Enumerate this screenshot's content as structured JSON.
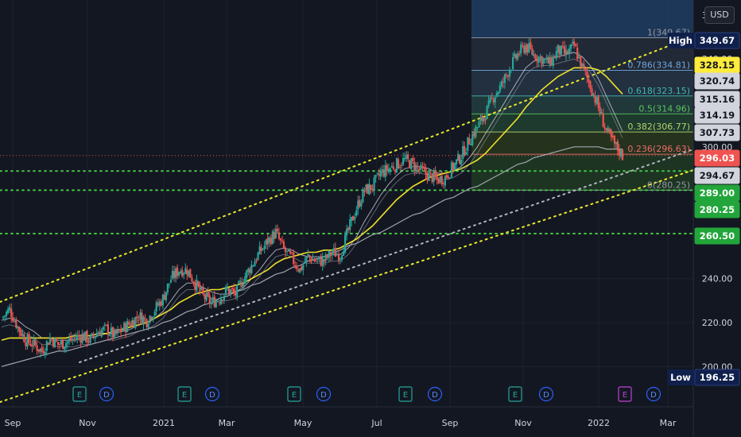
{
  "currency": "USD",
  "colors": {
    "background": "#131722",
    "grid": "#1e222d",
    "candle_up": "#26a69a",
    "candle_down": "#ef5350",
    "ma_yellow": "#f0e02a",
    "ma_gray": "#b2b5be",
    "channel": "#e8e82a",
    "support": "#43c443",
    "fib_high_band": "#2a4a6e",
    "fib_low_band": "#5a1f26"
  },
  "chart_data": {
    "type": "candlestick",
    "x_ticks": [
      "Sep",
      "Nov",
      "2021",
      "Mar",
      "May",
      "Jul",
      "Sep",
      "Nov",
      "2022",
      "Mar"
    ],
    "y_ticks": [
      "240.00",
      "220.00",
      "200.00"
    ],
    "y_range": [
      194,
      358
    ],
    "support_levels": [
      289.0,
      280.25,
      260.5
    ],
    "fibonacci": {
      "levels": [
        {
          "ratio": "1",
          "price": 349.67,
          "label": "1(349.67)"
        },
        {
          "ratio": "0.786",
          "price": 334.81,
          "label": "0.786(334.81)"
        },
        {
          "ratio": "0.618",
          "price": 323.15,
          "label": "0.618(323.15)"
        },
        {
          "ratio": "0.5",
          "price": 314.96,
          "label": "0.5(314.96)"
        },
        {
          "ratio": "0.382",
          "price": 306.77,
          "label": "0.382(306.77)"
        },
        {
          "ratio": "0.236",
          "price": 296.63,
          "label": "0.236(296.63)"
        },
        {
          "ratio": "0",
          "price": 280.25,
          "label": "0(280.25)"
        }
      ]
    },
    "price_tags": [
      {
        "label": "High",
        "value": "349.67",
        "price": 349.67,
        "style": "navy"
      },
      {
        "value": "328.15",
        "price": 328.15,
        "style": "yellow"
      },
      {
        "value": "320.74",
        "price": 320.74,
        "style": "light"
      },
      {
        "value": "315.16",
        "price": 315.16,
        "style": "light"
      },
      {
        "value": "314.19",
        "price": 314.19,
        "style": "light"
      },
      {
        "value": "307.73",
        "price": 307.73,
        "style": "light"
      },
      {
        "value": "296.03",
        "price": 296.03,
        "style": "red"
      },
      {
        "value": "294.67",
        "price": 294.67,
        "style": "light"
      },
      {
        "value": "289.00",
        "price": 289.0,
        "style": "green"
      },
      {
        "value": "280.25",
        "price": 280.25,
        "style": "green"
      },
      {
        "value": "260.50",
        "price": 260.5,
        "style": "green"
      },
      {
        "label": "Low",
        "value": "196.25",
        "price": 196.25,
        "style": "navy"
      }
    ],
    "events": [
      "E",
      "D",
      "E",
      "D",
      "E",
      "D",
      "E",
      "D",
      "E",
      "D",
      "E",
      "D"
    ],
    "series": [
      {
        "name": "close",
        "values": [
          222,
          226,
          218,
          212,
          210,
          207,
          213,
          210,
          211,
          213,
          214,
          212,
          216,
          217,
          214,
          217,
          220,
          223,
          221,
          226,
          231,
          240,
          244,
          244,
          238,
          232,
          229,
          231,
          235,
          233,
          240,
          246,
          252,
          257,
          261,
          253,
          249,
          244,
          250,
          248,
          248,
          252,
          251,
          262,
          272,
          280,
          282,
          288,
          290,
          292,
          294,
          292,
          289,
          287,
          285,
          286,
          291,
          296,
          303,
          309,
          315,
          323,
          328,
          336,
          342,
          346,
          342,
          340,
          338,
          344,
          342,
          346,
          336,
          328,
          318,
          307,
          301,
          296
        ]
      },
      {
        "name": "MA fast",
        "values": [
          221,
          222,
          221,
          218,
          216,
          213,
          213,
          212,
          212,
          212,
          213,
          213,
          214,
          215,
          215,
          216,
          217,
          219,
          220,
          222,
          225,
          230,
          235,
          238,
          238,
          236,
          234,
          233,
          233,
          234,
          236,
          240,
          244,
          249,
          253,
          254,
          253,
          251,
          250,
          250,
          250,
          251,
          251,
          254,
          259,
          266,
          272,
          278,
          283,
          287,
          290,
          291,
          291,
          290,
          288,
          288,
          289,
          291,
          295,
          300,
          306,
          312,
          318,
          324,
          330,
          336,
          339,
          340,
          340,
          341,
          342,
          343,
          341,
          337,
          331,
          323,
          315,
          307
        ]
      },
      {
        "name": "MA slow",
        "values": [
          212,
          213,
          213,
          213,
          213,
          213,
          213,
          213,
          213,
          214,
          214,
          214,
          215,
          215,
          216,
          217,
          218,
          219,
          220,
          222,
          224,
          226,
          229,
          231,
          233,
          234,
          235,
          235,
          236,
          237,
          238,
          240,
          242,
          244,
          247,
          249,
          250,
          251,
          252,
          252,
          253,
          253,
          254,
          256,
          258,
          261,
          264,
          268,
          272,
          276,
          279,
          282,
          284,
          286,
          287,
          288,
          289,
          290,
          292,
          294,
          297,
          301,
          305,
          309,
          313,
          318,
          322,
          326,
          329,
          332,
          334,
          336,
          336,
          336,
          335,
          332,
          328,
          324
        ]
      },
      {
        "name": "MA long",
        "values": [
          200,
          201,
          202,
          203,
          204,
          205,
          206,
          207,
          207,
          208,
          209,
          210,
          211,
          212,
          213,
          214,
          215,
          216,
          217,
          218,
          220,
          221,
          223,
          225,
          226,
          228,
          229,
          231,
          232,
          234,
          235,
          237,
          238,
          240,
          242,
          243,
          245,
          246,
          248,
          249,
          250,
          252,
          253,
          255,
          256,
          258,
          260,
          261,
          263,
          265,
          267,
          269,
          270,
          272,
          274,
          276,
          277,
          279,
          281,
          282,
          284,
          286,
          288,
          290,
          292,
          293,
          295,
          296,
          297,
          298,
          299,
          300,
          300,
          300,
          300,
          299,
          299,
          299
        ]
      }
    ]
  }
}
